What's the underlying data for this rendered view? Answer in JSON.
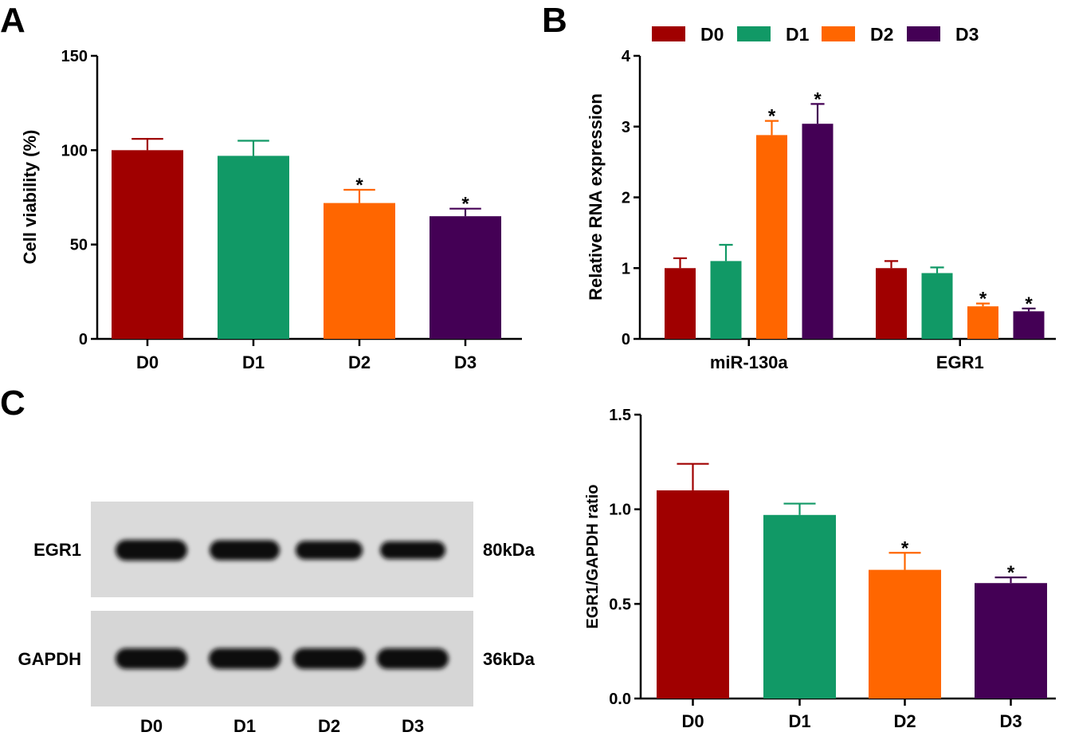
{
  "panels": {
    "a": "A",
    "b": "B",
    "c": "C"
  },
  "colors": {
    "D0": "#a00000",
    "D1": "#119966",
    "D2": "#ff6600",
    "D3": "#440055"
  },
  "legend": {
    "placement": "top",
    "entries": [
      "D0",
      "D1",
      "D2",
      "D3"
    ]
  },
  "chart_data": [
    {
      "type": "bar",
      "panel": "A",
      "categories": [
        "D0",
        "D1",
        "D2",
        "D3"
      ],
      "values": [
        100,
        97,
        72,
        65
      ],
      "errors": [
        6,
        8,
        7,
        4
      ],
      "significance": [
        "",
        "",
        "*",
        "*"
      ],
      "ylabel": "Cell viability (%)",
      "ylim": [
        0,
        150
      ],
      "yticks": [
        0,
        50,
        100,
        150
      ]
    },
    {
      "type": "bar",
      "panel": "B",
      "categories": [
        "miR-130a",
        "EGR1"
      ],
      "series": [
        {
          "name": "D0",
          "values": [
            1.0,
            1.0
          ],
          "errors": [
            0.14,
            0.1
          ],
          "significance": [
            "",
            ""
          ]
        },
        {
          "name": "D1",
          "values": [
            1.1,
            0.93
          ],
          "errors": [
            0.23,
            0.08
          ],
          "significance": [
            "",
            ""
          ]
        },
        {
          "name": "D2",
          "values": [
            2.88,
            0.46
          ],
          "errors": [
            0.2,
            0.04
          ],
          "significance": [
            "*",
            "*"
          ]
        },
        {
          "name": "D3",
          "values": [
            3.04,
            0.39
          ],
          "errors": [
            0.28,
            0.04
          ],
          "significance": [
            "*",
            "*"
          ]
        }
      ],
      "ylabel": "Relative RNA expression",
      "ylim": [
        0,
        4
      ],
      "yticks": [
        0,
        1,
        2,
        3,
        4
      ]
    },
    {
      "type": "bar",
      "panel": "C",
      "categories": [
        "D0",
        "D1",
        "D2",
        "D3"
      ],
      "values": [
        1.1,
        0.97,
        0.68,
        0.61
      ],
      "errors": [
        0.14,
        0.06,
        0.09,
        0.03
      ],
      "significance": [
        "",
        "",
        "*",
        "*"
      ],
      "ylabel": "EGR1/GAPDH ratio",
      "ylim": [
        0,
        1.5
      ],
      "yticks": [
        "0.0",
        "0.5",
        "1.0",
        "1.5"
      ]
    }
  ],
  "blot": {
    "rows": [
      {
        "label": "EGR1",
        "size": "80kDa",
        "intensity": [
          1.0,
          0.9,
          0.7,
          0.6
        ]
      },
      {
        "label": "GAPDH",
        "size": "36kDa",
        "intensity": [
          1.0,
          1.0,
          1.0,
          1.0
        ]
      }
    ],
    "lanes": [
      "D0",
      "D1",
      "D2",
      "D3"
    ]
  }
}
